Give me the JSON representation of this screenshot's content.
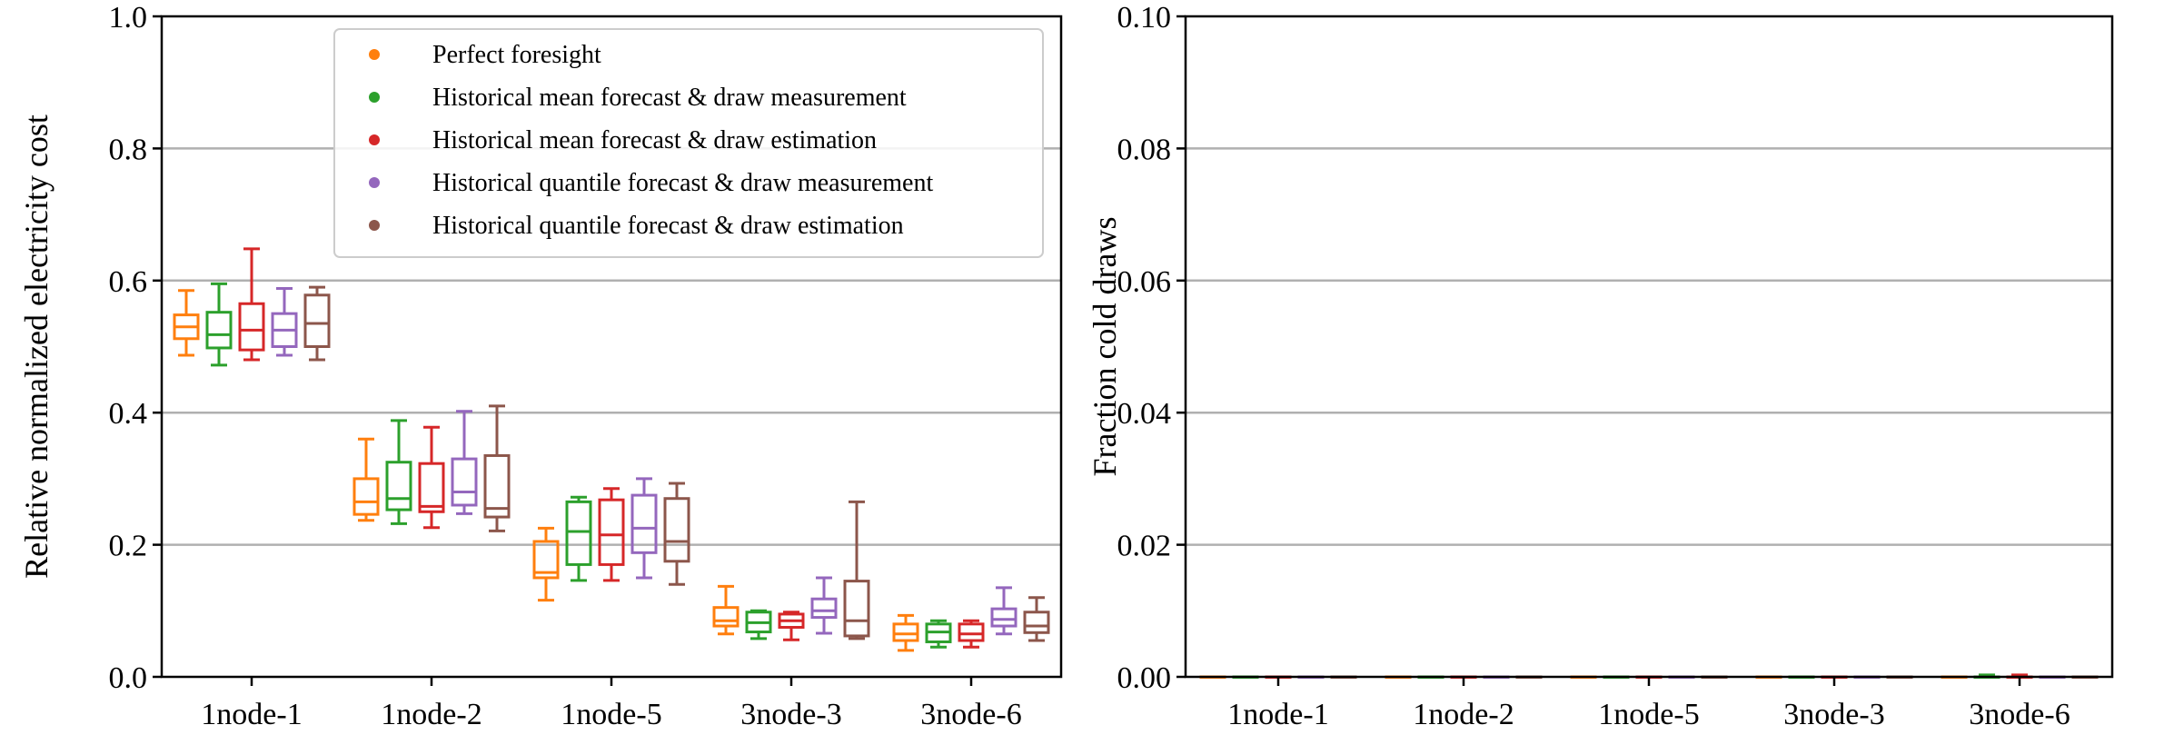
{
  "chart_data": [
    {
      "type": "box",
      "title": "",
      "xlabel": "",
      "ylabel": "Relative normalized electricity cost",
      "ylim": [
        0,
        1.0
      ],
      "yticks": [
        "0.0",
        "0.2",
        "0.4",
        "0.6",
        "0.8",
        "1.0"
      ],
      "grid": "y",
      "categories": [
        "1node-1",
        "1node-2",
        "1node-5",
        "3node-3",
        "3node-6"
      ],
      "legend_position": "top-center",
      "series": [
        {
          "name": "Perfect foresight",
          "color": "#ff7f0e",
          "boxes": [
            {
              "whislo": 0.487,
              "q1": 0.512,
              "med": 0.53,
              "q3": 0.548,
              "whishi": 0.585
            },
            {
              "whislo": 0.237,
              "q1": 0.246,
              "med": 0.265,
              "q3": 0.3,
              "whishi": 0.36
            },
            {
              "whislo": 0.116,
              "q1": 0.15,
              "med": 0.158,
              "q3": 0.205,
              "whishi": 0.225
            },
            {
              "whislo": 0.065,
              "q1": 0.077,
              "med": 0.085,
              "q3": 0.105,
              "whishi": 0.137
            },
            {
              "whislo": 0.04,
              "q1": 0.055,
              "med": 0.065,
              "q3": 0.08,
              "whishi": 0.093
            }
          ]
        },
        {
          "name": "Historical mean forecast & draw measurement",
          "color": "#2ca02c",
          "boxes": [
            {
              "whislo": 0.472,
              "q1": 0.498,
              "med": 0.518,
              "q3": 0.552,
              "whishi": 0.595
            },
            {
              "whislo": 0.232,
              "q1": 0.253,
              "med": 0.27,
              "q3": 0.325,
              "whishi": 0.388
            },
            {
              "whislo": 0.146,
              "q1": 0.17,
              "med": 0.22,
              "q3": 0.265,
              "whishi": 0.272
            },
            {
              "whislo": 0.058,
              "q1": 0.068,
              "med": 0.082,
              "q3": 0.098,
              "whishi": 0.1
            },
            {
              "whislo": 0.045,
              "q1": 0.053,
              "med": 0.068,
              "q3": 0.08,
              "whishi": 0.085
            }
          ]
        },
        {
          "name": "Historical mean forecast & draw estimation",
          "color": "#d62728",
          "boxes": [
            {
              "whislo": 0.48,
              "q1": 0.495,
              "med": 0.525,
              "q3": 0.565,
              "whishi": 0.648
            },
            {
              "whislo": 0.226,
              "q1": 0.25,
              "med": 0.258,
              "q3": 0.323,
              "whishi": 0.378
            },
            {
              "whislo": 0.146,
              "q1": 0.17,
              "med": 0.215,
              "q3": 0.268,
              "whishi": 0.285
            },
            {
              "whislo": 0.056,
              "q1": 0.075,
              "med": 0.085,
              "q3": 0.095,
              "whishi": 0.098
            },
            {
              "whislo": 0.045,
              "q1": 0.055,
              "med": 0.065,
              "q3": 0.08,
              "whishi": 0.085
            }
          ]
        },
        {
          "name": "Historical quantile forecast & draw measurement",
          "color": "#9467bd",
          "boxes": [
            {
              "whislo": 0.487,
              "q1": 0.5,
              "med": 0.525,
              "q3": 0.55,
              "whishi": 0.588
            },
            {
              "whislo": 0.247,
              "q1": 0.26,
              "med": 0.28,
              "q3": 0.33,
              "whishi": 0.402
            },
            {
              "whislo": 0.15,
              "q1": 0.188,
              "med": 0.225,
              "q3": 0.275,
              "whishi": 0.3
            },
            {
              "whislo": 0.066,
              "q1": 0.09,
              "med": 0.1,
              "q3": 0.118,
              "whishi": 0.15
            },
            {
              "whislo": 0.065,
              "q1": 0.077,
              "med": 0.087,
              "q3": 0.103,
              "whishi": 0.135
            }
          ]
        },
        {
          "name": "Historical quantile forecast & draw estimation",
          "color": "#8c564b",
          "boxes": [
            {
              "whislo": 0.48,
              "q1": 0.5,
              "med": 0.535,
              "q3": 0.578,
              "whishi": 0.59
            },
            {
              "whislo": 0.221,
              "q1": 0.242,
              "med": 0.255,
              "q3": 0.335,
              "whishi": 0.41
            },
            {
              "whislo": 0.14,
              "q1": 0.175,
              "med": 0.205,
              "q3": 0.27,
              "whishi": 0.293
            },
            {
              "whislo": 0.058,
              "q1": 0.062,
              "med": 0.085,
              "q3": 0.145,
              "whishi": 0.265
            },
            {
              "whislo": 0.055,
              "q1": 0.067,
              "med": 0.077,
              "q3": 0.098,
              "whishi": 0.12
            }
          ]
        }
      ]
    },
    {
      "type": "box",
      "title": "",
      "xlabel": "",
      "ylabel": "Fraction cold draws",
      "ylim": [
        0,
        0.1
      ],
      "yticks": [
        "0.00",
        "0.02",
        "0.04",
        "0.06",
        "0.08",
        "0.10"
      ],
      "grid": "y",
      "categories": [
        "1node-1",
        "1node-2",
        "1node-5",
        "3node-3",
        "3node-6"
      ],
      "series": [
        {
          "name": "Perfect foresight",
          "color": "#ff7f0e",
          "boxes": [
            {
              "whislo": 0,
              "q1": 0,
              "med": 0,
              "q3": 0,
              "whishi": 0
            },
            {
              "whislo": 0,
              "q1": 0,
              "med": 0,
              "q3": 0,
              "whishi": 0
            },
            {
              "whislo": 0,
              "q1": 0,
              "med": 0,
              "q3": 0,
              "whishi": 0
            },
            {
              "whislo": 0,
              "q1": 0,
              "med": 0,
              "q3": 0,
              "whishi": 0
            },
            {
              "whislo": 0,
              "q1": 0,
              "med": 0,
              "q3": 0,
              "whishi": 0
            }
          ]
        },
        {
          "name": "Historical mean forecast & draw measurement",
          "color": "#2ca02c",
          "boxes": [
            {
              "whislo": 0,
              "q1": 0,
              "med": 0,
              "q3": 0,
              "whishi": 0
            },
            {
              "whislo": 0,
              "q1": 0,
              "med": 0,
              "q3": 0,
              "whishi": 0
            },
            {
              "whislo": 0,
              "q1": 0,
              "med": 0,
              "q3": 0,
              "whishi": 0
            },
            {
              "whislo": 0,
              "q1": 0,
              "med": 0,
              "q3": 0,
              "whishi": 0
            },
            {
              "whislo": 0,
              "q1": 0,
              "med": 0,
              "q3": 0,
              "whishi": 0.0003
            }
          ]
        },
        {
          "name": "Historical mean forecast & draw estimation",
          "color": "#d62728",
          "boxes": [
            {
              "whislo": 0,
              "q1": 0,
              "med": 0,
              "q3": 0,
              "whishi": 0
            },
            {
              "whislo": 0,
              "q1": 0,
              "med": 0,
              "q3": 0,
              "whishi": 0
            },
            {
              "whislo": 0,
              "q1": 0,
              "med": 0,
              "q3": 0,
              "whishi": 0
            },
            {
              "whislo": 0,
              "q1": 0,
              "med": 0,
              "q3": 0,
              "whishi": 0
            },
            {
              "whislo": 0,
              "q1": 0,
              "med": 0,
              "q3": 0,
              "whishi": 0.0003
            }
          ]
        },
        {
          "name": "Historical quantile forecast & draw measurement",
          "color": "#9467bd",
          "boxes": [
            {
              "whislo": 0,
              "q1": 0,
              "med": 0,
              "q3": 0,
              "whishi": 0
            },
            {
              "whislo": 0,
              "q1": 0,
              "med": 0,
              "q3": 0,
              "whishi": 0
            },
            {
              "whislo": 0,
              "q1": 0,
              "med": 0,
              "q3": 0,
              "whishi": 0
            },
            {
              "whislo": 0,
              "q1": 0,
              "med": 0,
              "q3": 0,
              "whishi": 0
            },
            {
              "whislo": 0,
              "q1": 0,
              "med": 0,
              "q3": 0,
              "whishi": 0
            }
          ]
        },
        {
          "name": "Historical quantile forecast & draw estimation",
          "color": "#8c564b",
          "boxes": [
            {
              "whislo": 0,
              "q1": 0,
              "med": 0,
              "q3": 0,
              "whishi": 0
            },
            {
              "whislo": 0,
              "q1": 0,
              "med": 0,
              "q3": 0,
              "whishi": 0
            },
            {
              "whislo": 0,
              "q1": 0,
              "med": 0,
              "q3": 0,
              "whishi": 0
            },
            {
              "whislo": 0,
              "q1": 0,
              "med": 0,
              "q3": 0,
              "whishi": 0
            },
            {
              "whislo": 0,
              "q1": 0,
              "med": 0,
              "q3": 0,
              "whishi": 0
            }
          ]
        }
      ]
    }
  ]
}
